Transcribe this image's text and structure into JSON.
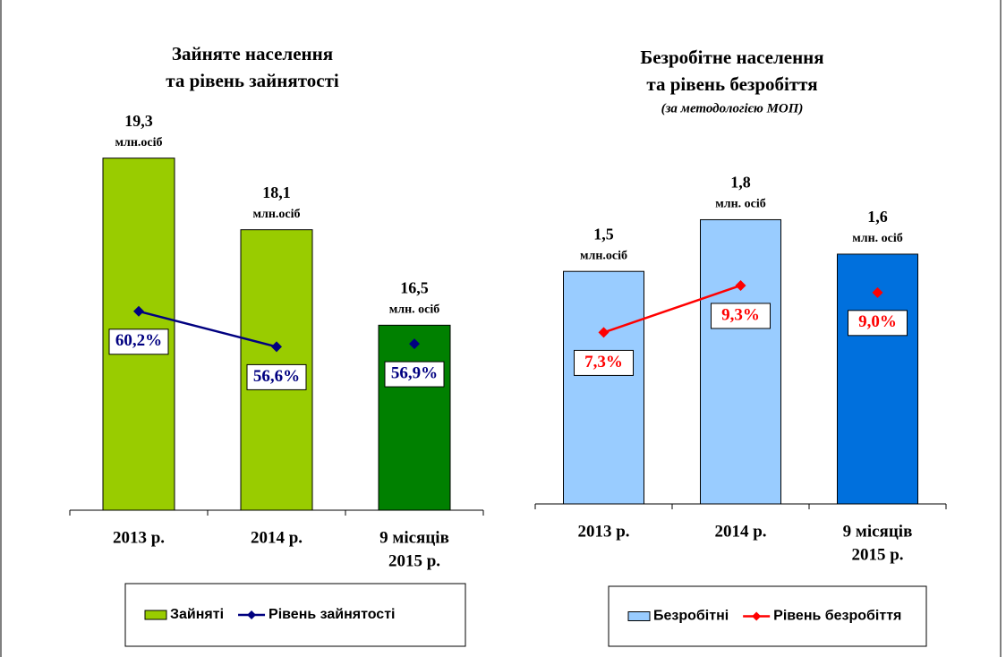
{
  "chart_data": [
    {
      "type": "bar-line",
      "title": [
        "Зайняте населення",
        "та рівень зайнятості"
      ],
      "categories": [
        [
          "2013 р."
        ],
        [
          "2014 р."
        ],
        [
          "9 місяців",
          "2015 р."
        ]
      ],
      "ylim": [
        13.4,
        20
      ],
      "y2lim": [
        40,
        80
      ],
      "series": [
        {
          "name": "Зайняті",
          "type": "bar",
          "colors": [
            "#99cc00",
            "#99cc00",
            "#008000"
          ],
          "values": [
            19.3,
            18.1,
            16.5
          ],
          "value_labels": [
            "19,3",
            "18,1",
            "16,5"
          ],
          "value_units": [
            "млн.осіб",
            "млн.осіб",
            "млн. осіб"
          ]
        },
        {
          "name": "Рівень зайнятості",
          "type": "line",
          "axis": "y2",
          "color": "#000080",
          "values": [
            60.2,
            56.6,
            56.9
          ],
          "value_labels": [
            "60,2%",
            "56,6%",
            "56,9%"
          ],
          "gap_before": [
            2
          ]
        }
      ]
    },
    {
      "type": "bar-line",
      "title": [
        "Безробітне населення",
        "та рівень безробіття"
      ],
      "subtitle": "(за методологією МОП)",
      "categories": [
        [
          "2013 р."
        ],
        [
          "2014 р."
        ],
        [
          "9 місяців",
          "2015 р."
        ]
      ],
      "ylim": [
        0.15,
        2.4
      ],
      "y2lim": [
        0,
        16.5
      ],
      "series": [
        {
          "name": "Безробітні",
          "type": "bar",
          "colors": [
            "#99ccff",
            "#99ccff",
            "#0070dd"
          ],
          "values": [
            1.5,
            1.8,
            1.6
          ],
          "value_labels": [
            "1,5",
            "1,8",
            "1,6"
          ],
          "value_units": [
            "млн.осіб",
            "млн. осіб",
            "млн. осіб"
          ]
        },
        {
          "name": "Рівень безробіття",
          "type": "line",
          "axis": "y2",
          "color": "#ff0000",
          "values": [
            7.3,
            9.3,
            9.0
          ],
          "value_labels": [
            "7,3%",
            "9,3%",
            "9,0%"
          ],
          "gap_before": [
            2
          ]
        }
      ]
    }
  ]
}
